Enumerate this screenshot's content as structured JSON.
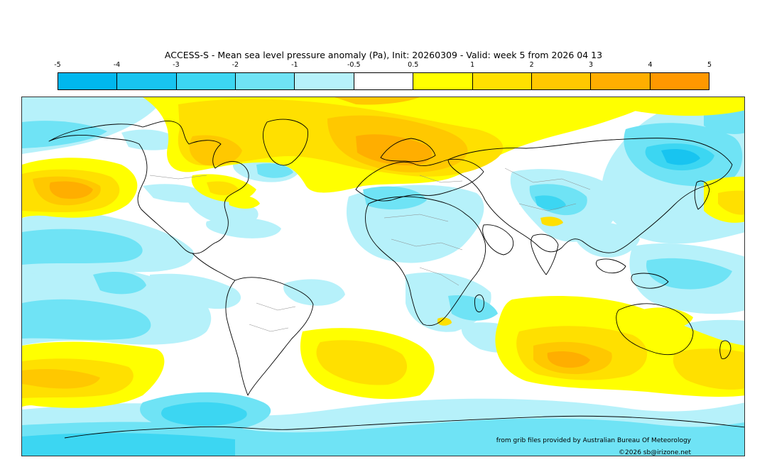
{
  "title": "ACCESS-S - Mean sea level pressure anomaly (Pa), Init: 20260309 - Valid: week 5 from 2026 04 13",
  "colorbar": {
    "ticks": [
      "-5",
      "-4",
      "-3",
      "-2",
      "-1",
      "-0.5",
      "0.5",
      "1",
      "2",
      "3",
      "4",
      "5"
    ],
    "colors": [
      "#00b7ee",
      "#18c4f0",
      "#3cd6f2",
      "#6fe3f5",
      "#b6f1fa",
      "#ffffff",
      "#ffff00",
      "#ffe000",
      "#ffc800",
      "#ffae00",
      "#ff9800"
    ]
  },
  "credits": {
    "source": "from grib files provided by Australian Bureau Of Meteorology",
    "copyright": "©2026 sb@irizone.net"
  }
}
